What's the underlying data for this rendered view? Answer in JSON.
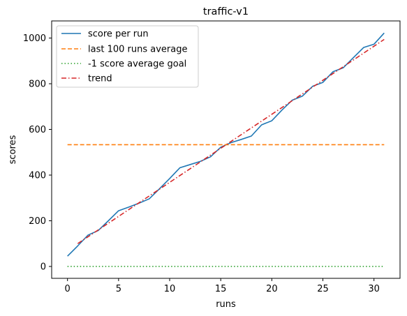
{
  "chart_data": {
    "type": "line",
    "title": "traffic-v1",
    "xlabel": "runs",
    "ylabel": "scores",
    "xlim": [
      -1.55,
      32.55
    ],
    "ylim": [
      -52,
      1075
    ],
    "xticks": [
      0,
      5,
      10,
      15,
      20,
      25,
      30
    ],
    "yticks": [
      0,
      200,
      400,
      600,
      800,
      1000
    ],
    "grid": false,
    "legend_position": "top-left",
    "series": [
      {
        "name": "score per run",
        "style": "solid",
        "color": "#1f77b4",
        "x": [
          0,
          1,
          2,
          3,
          4,
          5,
          6,
          7,
          8,
          9,
          10,
          11,
          12,
          13,
          14,
          15,
          16,
          17,
          18,
          19,
          20,
          21,
          22,
          23,
          24,
          25,
          26,
          27,
          28,
          29,
          30,
          31
        ],
        "y": [
          45,
          90,
          137,
          157,
          200,
          244,
          260,
          277,
          296,
          340,
          385,
          432,
          446,
          460,
          480,
          522,
          542,
          556,
          571,
          620,
          638,
          685,
          728,
          746,
          789,
          806,
          853,
          870,
          915,
          959,
          973,
          1022
        ]
      },
      {
        "name": "last 100 runs average",
        "style": "dashed",
        "color": "#ff7f0e",
        "x": [
          0,
          31
        ],
        "y": [
          533,
          533
        ]
      },
      {
        "name": "-1 score average goal",
        "style": "dotted",
        "color": "#2ca02c",
        "x": [
          0,
          31
        ],
        "y": [
          0,
          0
        ]
      },
      {
        "name": "trend",
        "style": "dashdot",
        "color": "#d62728",
        "x": [
          1,
          31
        ],
        "y": [
          100,
          994
        ]
      }
    ]
  }
}
